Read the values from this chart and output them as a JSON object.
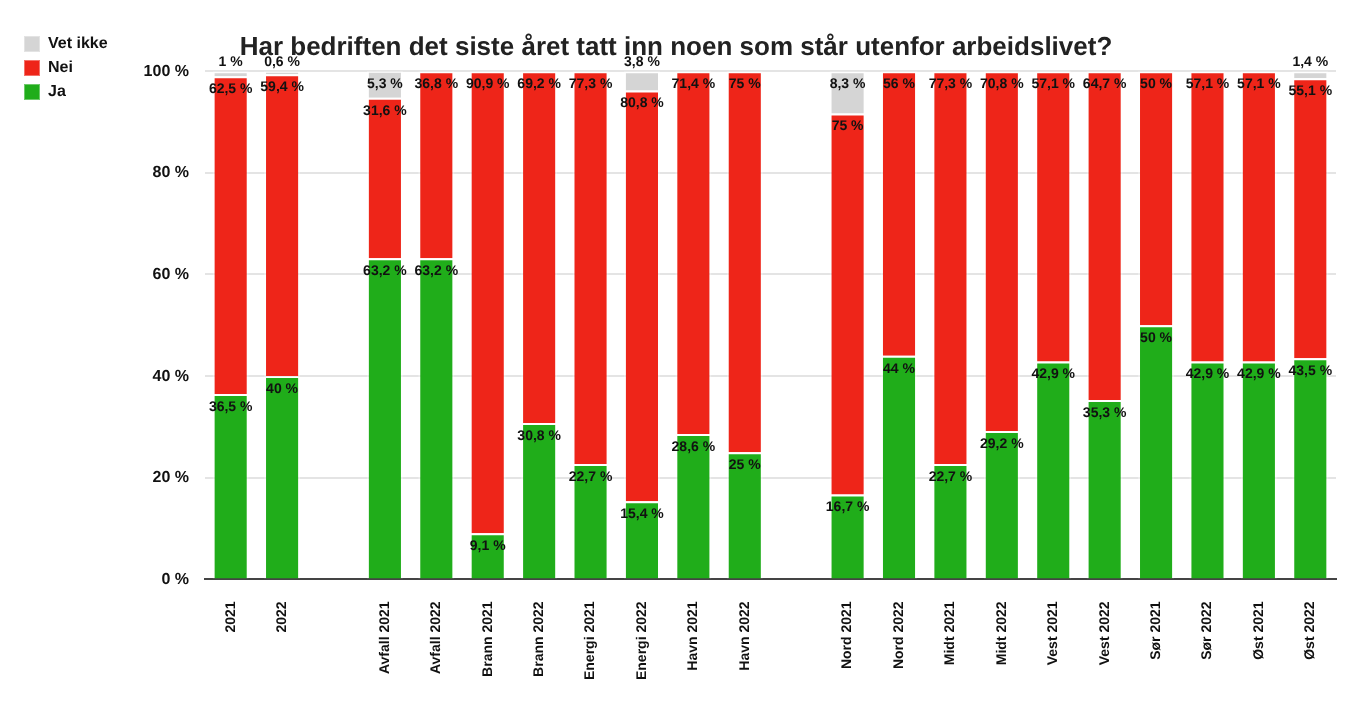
{
  "chart_data": {
    "type": "bar",
    "title": "Har bedriften det siste året tatt inn noen som står utenfor arbeidslivet?",
    "categories": [
      "2021",
      "2022",
      null,
      "Avfall 2021",
      "Avfall 2022",
      "Brann 2021",
      "Brann 2022",
      "Energi 2021",
      "Energi 2022",
      "Havn 2021",
      "Havn 2022",
      null,
      "Nord 2021",
      "Nord 2022",
      "Midt 2021",
      "Midt 2022",
      "Vest 2021",
      "Vest 2022",
      "Sør 2021",
      "Sør 2022",
      "Øst 2021",
      "Øst 2022"
    ],
    "stacked": true,
    "series": [
      {
        "name": "Ja",
        "color": "#20ad1a",
        "values": [
          36.5,
          40,
          null,
          63.2,
          63.2,
          9.1,
          30.8,
          22.7,
          15.4,
          28.6,
          25,
          null,
          16.7,
          44,
          22.7,
          29.2,
          42.9,
          35.3,
          50,
          42.9,
          42.9,
          43.5
        ],
        "value_labels": [
          "36,5 %",
          "40 %",
          null,
          "63,2 %",
          "63,2 %",
          "9,1 %",
          "30,8 %",
          "22,7 %",
          "15,4 %",
          "28,6 %",
          "25 %",
          null,
          "16,7 %",
          "44 %",
          "22,7 %",
          "29,2 %",
          "42,9 %",
          "35,3 %",
          "50 %",
          "42,9 %",
          "42,9 %",
          "43,5 %"
        ]
      },
      {
        "name": "Nei",
        "color": "#ee2519",
        "values": [
          62.5,
          59.4,
          null,
          31.6,
          36.8,
          90.9,
          69.2,
          77.3,
          80.8,
          71.4,
          75,
          null,
          75,
          56,
          77.3,
          70.8,
          57.1,
          64.7,
          50,
          57.1,
          57.1,
          55.1
        ],
        "value_labels": [
          "62,5 %",
          "59,4 %",
          null,
          "31,6 %",
          "36,8 %",
          "90,9 %",
          "69,2 %",
          "77,3 %",
          "80,8 %",
          "71,4 %",
          "75 %",
          null,
          "75 %",
          "56 %",
          "77,3 %",
          "70,8 %",
          "57,1 %",
          "64,7 %",
          "50 %",
          "57,1 %",
          "57,1 %",
          "55,1 %"
        ]
      },
      {
        "name": "Vet ikke",
        "color": "#d5d5d5",
        "values": [
          1,
          0.6,
          null,
          5.3,
          null,
          null,
          null,
          null,
          3.8,
          null,
          null,
          null,
          8.3,
          null,
          null,
          null,
          null,
          null,
          null,
          null,
          null,
          1.4
        ],
        "value_labels": [
          "1 %",
          "0,6 %",
          null,
          "5,3 %",
          null,
          null,
          null,
          null,
          "3,8 %",
          null,
          null,
          null,
          "8,3 %",
          null,
          null,
          null,
          null,
          null,
          null,
          null,
          null,
          "1,4 %"
        ]
      }
    ],
    "ylim": [
      0,
      100
    ],
    "yticks": [
      {
        "value": 0,
        "label": "0 %"
      },
      {
        "value": 20,
        "label": "20 %"
      },
      {
        "value": 40,
        "label": "40 %"
      },
      {
        "value": 60,
        "label": "60 %"
      },
      {
        "value": 80,
        "label": "80 %"
      },
      {
        "value": 100,
        "label": "100 %"
      }
    ],
    "grid": "y",
    "legend": "top left"
  }
}
